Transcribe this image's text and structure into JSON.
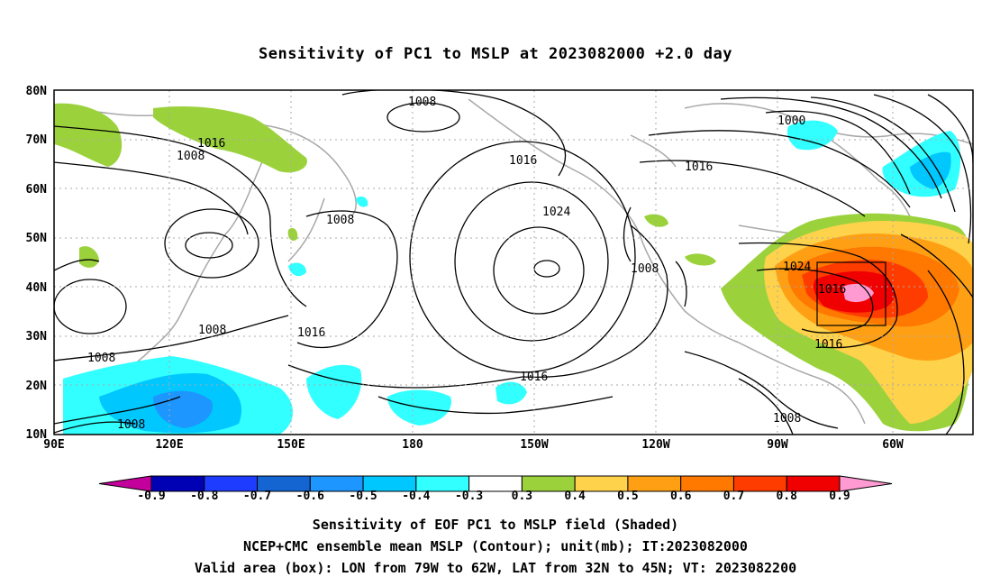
{
  "title": "Sensitivity of PC1 to MSLP at 2023082000 +2.0 day",
  "map": {
    "lat_labels": [
      "80N",
      "70N",
      "60N",
      "50N",
      "40N",
      "30N",
      "20N",
      "10N"
    ],
    "lon_labels": [
      "90E",
      "120E",
      "150E",
      "180",
      "150W",
      "120W",
      "90W",
      "60W"
    ],
    "contour_labels": [
      {
        "text": "1008"
      },
      {
        "text": "1016"
      },
      {
        "text": "1008"
      },
      {
        "text": "1008"
      },
      {
        "text": "1016"
      },
      {
        "text": "1024"
      },
      {
        "text": "1016"
      },
      {
        "text": "1000"
      },
      {
        "text": "1008"
      },
      {
        "text": "1024"
      },
      {
        "text": "1016"
      },
      {
        "text": "1016"
      },
      {
        "text": "1008"
      },
      {
        "text": "1016"
      },
      {
        "text": "1008"
      },
      {
        "text": "1008"
      },
      {
        "text": "1016"
      },
      {
        "text": "1008"
      }
    ]
  },
  "colorbar": {
    "colors": [
      "#c4009c",
      "#0000b4",
      "#1e3cff",
      "#1464d2",
      "#1e96ff",
      "#00c8ff",
      "#32ffff",
      "#ffffff",
      "#9bd23c",
      "#ffd24b",
      "#ffa014",
      "#ff7800",
      "#ff3c00",
      "#f00000",
      "#ff9bd2"
    ],
    "labels": [
      "-0.9",
      "-0.8",
      "-0.7",
      "-0.6",
      "-0.5",
      "-0.4",
      "-0.3",
      "0.3",
      "0.4",
      "0.5",
      "0.6",
      "0.7",
      "0.8",
      "0.9"
    ]
  },
  "captions": [
    "Sensitivity of EOF PC1 to MSLP field (Shaded)",
    "NCEP+CMC ensemble mean MSLP (Contour); unit(mb); IT:2023082000",
    "Valid area (box): LON from 79W to 62W, LAT from 32N to 45N; VT: 2023082200"
  ]
}
